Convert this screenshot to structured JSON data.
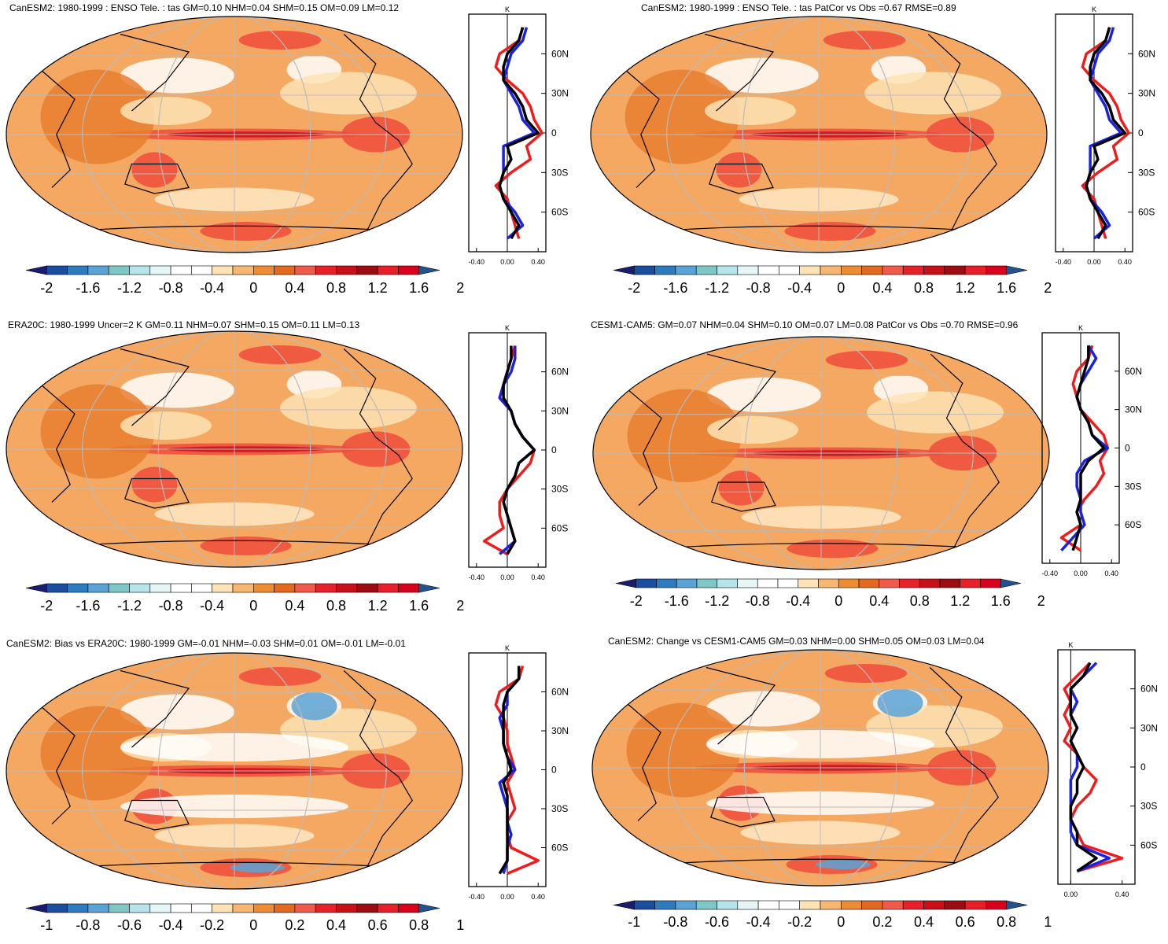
{
  "colors": {
    "scale_div": [
      "#1b1b70",
      "#1b4e9e",
      "#2f7bc0",
      "#5aa3d6",
      "#7fc7c7",
      "#b6e4ea",
      "#e6f6f7",
      "#ffffff",
      "#ffffff",
      "#fde3b5",
      "#f8b673",
      "#ee8c33",
      "#e2691f",
      "#f05a4a",
      "#e8202a",
      "#c8101b",
      "#9c0c12",
      "#e81e2a",
      "#d9001e",
      "#23538f"
    ],
    "map_background": "#f4a862",
    "line_red": "#ee1c1c",
    "line_blue": "#1a22e0",
    "line_black": "#000000",
    "grid": "#bbbbbb"
  },
  "panels": [
    {
      "title": "CanESM2: 1980-1999 : ENSO Tele. : tas GM=0.10 NHM=0.04 SHM=0.15 OM=0.09 LM=0.12",
      "colorbar_labels": [
        "-2",
        "-1.6",
        "-1.2",
        "-0.8",
        "-0.4",
        "0",
        "0.4",
        "0.8",
        "1.2",
        "1.6",
        "2"
      ],
      "zonal_unit": "K",
      "lat_labels": [
        "60N",
        "30N",
        "0",
        "30S",
        "60S"
      ],
      "x_labels": [
        "-0.40",
        "0.00",
        "0.40"
      ],
      "chart_data": {
        "type": "line",
        "title": "CanESM2: 1980-1999 : ENSO Tele. : tas GM=0.10 NHM=0.04 SHM=0.15 OM=0.09 LM=0.12",
        "ylabel": "",
        "xlabel": "K",
        "xlim": [
          -0.5,
          0.5
        ],
        "ylim": [
          -90,
          90
        ],
        "y": [
          80,
          70,
          60,
          50,
          40,
          30,
          20,
          10,
          0,
          -10,
          -20,
          -30,
          -40,
          -50,
          -60,
          -70,
          -80
        ],
        "series": [
          {
            "color": "red",
            "values": [
              0.2,
              0.15,
              -0.1,
              -0.15,
              0.0,
              0.2,
              0.3,
              0.35,
              0.45,
              0.25,
              0.3,
              0.05,
              -0.15,
              0.0,
              0.05,
              0.1,
              0.15
            ]
          },
          {
            "color": "blue",
            "values": [
              0.25,
              0.2,
              0.05,
              0.0,
              -0.05,
              0.05,
              0.15,
              0.2,
              0.35,
              -0.05,
              -0.05,
              -0.05,
              -0.1,
              -0.05,
              0.1,
              0.2,
              0.0
            ]
          },
          {
            "color": "black",
            "values": [
              0.2,
              0.15,
              0.0,
              -0.05,
              -0.05,
              0.1,
              0.2,
              0.25,
              0.4,
              0.0,
              0.05,
              -0.05,
              -0.1,
              -0.05,
              0.05,
              0.15,
              0.05
            ]
          }
        ]
      }
    },
    {
      "title": "CanESM2: 1980-1999 : ENSO Tele. : tas PatCor vs Obs =0.67 RMSE=0.89",
      "colorbar_labels": [
        "-2",
        "-1.6",
        "-1.2",
        "-0.8",
        "-0.4",
        "0",
        "0.4",
        "0.8",
        "1.2",
        "1.6",
        "2"
      ],
      "zonal_unit": "K",
      "lat_labels": [
        "60N",
        "30N",
        "0",
        "30S",
        "60S"
      ],
      "x_labels": [
        "-0.40",
        "0.00",
        "0.40"
      ],
      "chart_data": {
        "type": "line",
        "title": "CanESM2: 1980-1999 : ENSO Tele. : tas PatCor vs Obs =0.67 RMSE=0.89",
        "ylabel": "",
        "xlabel": "K",
        "xlim": [
          -0.5,
          0.5
        ],
        "ylim": [
          -90,
          90
        ],
        "y": [
          80,
          70,
          60,
          50,
          40,
          30,
          20,
          10,
          0,
          -10,
          -20,
          -30,
          -40,
          -50,
          -60,
          -70,
          -80
        ],
        "series": [
          {
            "color": "red",
            "values": [
              0.2,
              0.15,
              -0.1,
              -0.15,
              0.0,
              0.2,
              0.3,
              0.35,
              0.45,
              0.25,
              0.3,
              0.05,
              -0.15,
              0.0,
              0.05,
              0.1,
              0.15
            ]
          },
          {
            "color": "blue",
            "values": [
              0.25,
              0.2,
              0.05,
              0.0,
              -0.05,
              0.05,
              0.15,
              0.2,
              0.35,
              -0.05,
              -0.05,
              -0.05,
              -0.1,
              -0.05,
              0.1,
              0.2,
              0.0
            ]
          },
          {
            "color": "black",
            "values": [
              0.2,
              0.15,
              0.0,
              -0.05,
              -0.05,
              0.1,
              0.2,
              0.25,
              0.4,
              0.0,
              0.05,
              -0.05,
              -0.1,
              -0.05,
              0.05,
              0.15,
              0.05
            ]
          }
        ]
      }
    },
    {
      "title": "ERA20C: 1980-1999 Uncer=2 K GM=0.11 NHM=0.07 SHM=0.15 OM=0.11 LM=0.13",
      "colorbar_labels": [
        "-2",
        "-1.6",
        "-1.2",
        "-0.8",
        "-0.4",
        "0",
        "0.4",
        "0.8",
        "1.2",
        "1.6",
        "2"
      ],
      "zonal_unit": "K",
      "lat_labels": [
        "60N",
        "30N",
        "0",
        "30S",
        "60S"
      ],
      "x_labels": [
        "-0.40",
        "0.00",
        "0.40"
      ],
      "chart_data": {
        "type": "line",
        "title": "ERA20C: 1980-1999 Uncer=2 K GM=0.11 NHM=0.07 SHM=0.15 OM=0.11 LM=0.13",
        "ylabel": "",
        "xlabel": "K",
        "xlim": [
          -0.5,
          0.5
        ],
        "ylim": [
          -90,
          90
        ],
        "y": [
          80,
          70,
          60,
          50,
          40,
          30,
          20,
          10,
          0,
          -10,
          -20,
          -30,
          -40,
          -50,
          -60,
          -70,
          -80
        ],
        "series": [
          {
            "color": "red",
            "values": [
              0.1,
              0.05,
              0.0,
              -0.05,
              -0.1,
              0.05,
              0.1,
              0.2,
              0.35,
              0.3,
              0.15,
              0.0,
              -0.1,
              -0.1,
              -0.05,
              -0.3,
              0.0
            ]
          },
          {
            "color": "blue",
            "values": [
              0.1,
              0.1,
              0.05,
              -0.05,
              -0.1,
              0.05,
              0.1,
              0.2,
              0.35,
              0.15,
              0.1,
              0.0,
              -0.05,
              0.0,
              0.05,
              0.1,
              -0.1
            ]
          },
          {
            "color": "black",
            "values": [
              0.05,
              0.05,
              0.0,
              -0.05,
              -0.05,
              0.05,
              0.1,
              0.2,
              0.35,
              0.15,
              0.1,
              0.0,
              -0.05,
              0.0,
              0.05,
              0.1,
              0.0
            ]
          }
        ]
      }
    },
    {
      "title": "CESM1-CAM5: GM=0.07 NHM=0.04 SHM=0.10 OM=0.07 LM=0.08 PatCor vs Obs =0.70 RMSE=0.96",
      "colorbar_labels": [
        "-2",
        "-1.6",
        "-1.2",
        "-0.8",
        "-0.4",
        "0",
        "0.4",
        "0.8",
        "1.2",
        "1.6",
        "2"
      ],
      "zonal_unit": "K",
      "lat_labels": [
        "60N",
        "30N",
        "0",
        "30S",
        "60S"
      ],
      "x_labels": [
        "-0.40",
        "0.00",
        "0.40"
      ],
      "chart_data": {
        "type": "line",
        "title": "CESM1-CAM5: GM=0.07 NHM=0.04 SHM=0.10 OM=0.07 LM=0.08 PatCor vs Obs =0.70 RMSE=0.96",
        "ylabel": "",
        "xlabel": "K",
        "xlim": [
          -0.5,
          0.5
        ],
        "ylim": [
          -90,
          90
        ],
        "y": [
          80,
          70,
          60,
          50,
          40,
          30,
          20,
          10,
          0,
          -10,
          -20,
          -30,
          -40,
          -50,
          -60,
          -70,
          -80
        ],
        "series": [
          {
            "color": "red",
            "values": [
              0.15,
              0.1,
              -0.05,
              -0.1,
              -0.05,
              0.0,
              0.15,
              0.3,
              0.35,
              0.25,
              0.3,
              0.2,
              0.05,
              -0.05,
              0.0,
              -0.25,
              0.0
            ]
          },
          {
            "color": "blue",
            "values": [
              0.1,
              0.2,
              0.1,
              0.0,
              -0.05,
              0.0,
              0.1,
              0.15,
              0.35,
              0.05,
              -0.05,
              -0.05,
              0.0,
              0.0,
              0.05,
              -0.1,
              -0.25
            ]
          },
          {
            "color": "black",
            "values": [
              0.1,
              0.1,
              0.05,
              0.0,
              -0.05,
              0.0,
              0.1,
              0.15,
              0.3,
              0.1,
              0.0,
              0.0,
              0.0,
              -0.05,
              0.0,
              -0.05,
              -0.1
            ]
          }
        ]
      }
    },
    {
      "title": "CanESM2: Bias vs ERA20C: 1980-1999 GM=-0.01 NHM=-0.03 SHM=0.01 OM=-0.01 LM=-0.01",
      "colorbar_labels": [
        "-1",
        "-0.8",
        "-0.6",
        "-0.4",
        "-0.2",
        "0",
        "0.2",
        "0.4",
        "0.6",
        "0.8",
        "1"
      ],
      "zonal_unit": "K",
      "lat_labels": [
        "60N",
        "30N",
        "0",
        "30S",
        "60S"
      ],
      "x_labels": [
        "-0.40",
        "0.00",
        "0.40"
      ],
      "chart_data": {
        "type": "line",
        "title": "CanESM2: Bias vs ERA20C: 1980-1999 GM=-0.01 NHM=-0.03 SHM=0.01 OM=-0.01 LM=-0.01",
        "ylabel": "",
        "xlabel": "K",
        "xlim": [
          -0.5,
          0.5
        ],
        "ylim": [
          -90,
          90
        ],
        "y": [
          80,
          70,
          60,
          50,
          40,
          30,
          20,
          10,
          0,
          -10,
          -20,
          -30,
          -40,
          -50,
          -60,
          -70,
          -80
        ],
        "series": [
          {
            "color": "red",
            "values": [
              0.2,
              0.15,
              -0.1,
              -0.15,
              -0.05,
              0.0,
              0.0,
              0.05,
              0.1,
              0.0,
              0.05,
              0.1,
              0.0,
              0.0,
              0.05,
              0.4,
              0.0
            ]
          },
          {
            "color": "blue",
            "values": [
              0.15,
              0.15,
              0.0,
              0.0,
              -0.1,
              -0.05,
              -0.05,
              0.0,
              0.1,
              -0.1,
              -0.05,
              0.0,
              0.0,
              0.05,
              0.0,
              0.0,
              -0.05
            ]
          },
          {
            "color": "black",
            "values": [
              0.15,
              0.15,
              0.0,
              -0.05,
              -0.05,
              -0.05,
              -0.05,
              0.0,
              0.05,
              -0.05,
              0.0,
              0.0,
              0.0,
              0.0,
              0.0,
              0.0,
              -0.1
            ]
          }
        ]
      }
    },
    {
      "title": "CanESM2: Change vs CESM1-CAM5 GM=0.03 NHM=0.00 SHM=0.05 OM=0.03 LM=0.04",
      "colorbar_labels": [
        "-1",
        "-0.8",
        "-0.6",
        "-0.4",
        "-0.2",
        "0",
        "0.2",
        "0.4",
        "0.6",
        "0.8",
        "1"
      ],
      "zonal_unit": "K",
      "lat_labels": [
        "60N",
        "30N",
        "0",
        "30S",
        "60S"
      ],
      "x_labels": [
        "0.00",
        "0.40"
      ],
      "chart_data": {
        "type": "line",
        "title": "CanESM2: Change vs CESM1-CAM5 GM=0.03 NHM=0.00 SHM=0.05 OM=0.03 LM=0.04",
        "ylabel": "",
        "xlabel": "K",
        "xlim": [
          -0.1,
          0.5
        ],
        "ylim": [
          -90,
          90
        ],
        "y": [
          80,
          70,
          60,
          50,
          40,
          30,
          20,
          10,
          0,
          -10,
          -20,
          -30,
          -40,
          -50,
          -60,
          -70,
          -80
        ],
        "series": [
          {
            "color": "red",
            "values": [
              0.15,
              0.05,
              -0.05,
              0.0,
              -0.05,
              0.0,
              -0.05,
              0.05,
              0.1,
              0.2,
              0.15,
              0.05,
              0.0,
              0.05,
              0.1,
              0.4,
              0.05
            ]
          },
          {
            "color": "blue",
            "values": [
              0.2,
              0.1,
              0.0,
              0.05,
              0.0,
              0.05,
              0.0,
              0.05,
              0.05,
              0.0,
              0.0,
              0.0,
              0.0,
              0.0,
              0.05,
              0.3,
              0.05
            ]
          },
          {
            "color": "black",
            "values": [
              0.15,
              0.1,
              0.0,
              0.0,
              0.0,
              0.05,
              0.0,
              0.05,
              0.1,
              0.05,
              0.05,
              0.0,
              0.0,
              0.05,
              0.05,
              0.2,
              0.05
            ]
          }
        ]
      }
    }
  ]
}
